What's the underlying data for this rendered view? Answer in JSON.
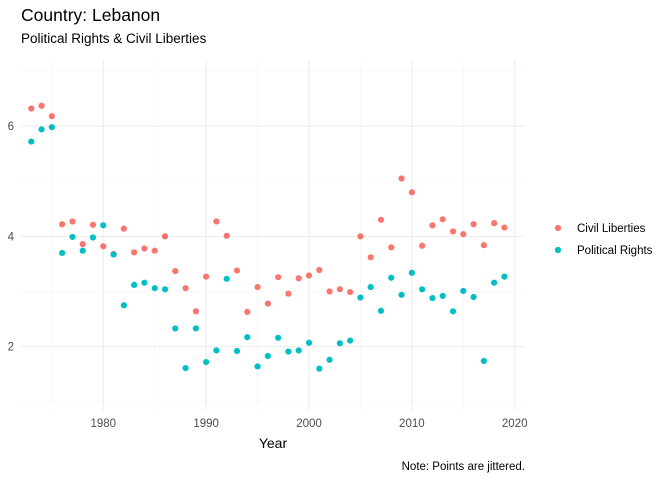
{
  "title": "Country: Lebanon",
  "subtitle": "Political Rights & Civil Liberties",
  "caption": "Note: Points are jittered.",
  "chart_data": {
    "type": "scatter",
    "xlabel": "Year",
    "ylabel": "",
    "xlim": [
      1972,
      2021
    ],
    "ylim": [
      0.85,
      7.2
    ],
    "x_ticks": [
      1980,
      1990,
      2000,
      2010,
      2020
    ],
    "y_ticks": [
      2,
      4,
      6
    ],
    "grid": true,
    "legend_position": "right",
    "series": [
      {
        "name": "Civil Liberties",
        "color": "#F8766D",
        "points": [
          [
            1973,
            6.32
          ],
          [
            1974,
            6.37
          ],
          [
            1975,
            6.18
          ],
          [
            1976,
            4.22
          ],
          [
            1977,
            4.27
          ],
          [
            1978,
            3.86
          ],
          [
            1979,
            4.21
          ],
          [
            1980,
            3.82
          ],
          [
            1981,
            3.68
          ],
          [
            1982,
            4.14
          ],
          [
            1983,
            3.71
          ],
          [
            1984,
            3.78
          ],
          [
            1985,
            3.74
          ],
          [
            1986,
            4.0
          ],
          [
            1987,
            3.37
          ],
          [
            1988,
            3.06
          ],
          [
            1989,
            2.64
          ],
          [
            1990,
            3.27
          ],
          [
            1991,
            4.27
          ],
          [
            1992,
            4.01
          ],
          [
            1993,
            3.38
          ],
          [
            1994,
            2.63
          ],
          [
            1995,
            3.08
          ],
          [
            1996,
            2.78
          ],
          [
            1997,
            3.26
          ],
          [
            1998,
            2.96
          ],
          [
            1999,
            3.24
          ],
          [
            2000,
            3.29
          ],
          [
            2001,
            3.39
          ],
          [
            2002,
            3.0
          ],
          [
            2003,
            3.04
          ],
          [
            2004,
            2.99
          ],
          [
            2005,
            4.0
          ],
          [
            2006,
            3.62
          ],
          [
            2007,
            4.3
          ],
          [
            2008,
            3.8
          ],
          [
            2009,
            5.05
          ],
          [
            2010,
            4.8
          ],
          [
            2011,
            3.83
          ],
          [
            2012,
            4.2
          ],
          [
            2013,
            4.31
          ],
          [
            2014,
            4.09
          ],
          [
            2015,
            4.04
          ],
          [
            2016,
            4.22
          ],
          [
            2017,
            3.84
          ],
          [
            2018,
            4.24
          ],
          [
            2019,
            4.16
          ]
        ]
      },
      {
        "name": "Political Rights",
        "color": "#00BFC4",
        "points": [
          [
            1973,
            5.72
          ],
          [
            1974,
            5.94
          ],
          [
            1975,
            5.98
          ],
          [
            1976,
            3.7
          ],
          [
            1977,
            3.99
          ],
          [
            1978,
            3.74
          ],
          [
            1979,
            3.98
          ],
          [
            1980,
            4.2
          ],
          [
            1981,
            3.67
          ],
          [
            1982,
            2.75
          ],
          [
            1983,
            3.12
          ],
          [
            1984,
            3.16
          ],
          [
            1985,
            3.06
          ],
          [
            1986,
            3.04
          ],
          [
            1987,
            2.33
          ],
          [
            1988,
            1.61
          ],
          [
            1989,
            2.33
          ],
          [
            1990,
            1.72
          ],
          [
            1991,
            1.93
          ],
          [
            1992,
            3.23
          ],
          [
            1993,
            1.92
          ],
          [
            1994,
            2.17
          ],
          [
            1995,
            1.64
          ],
          [
            1996,
            1.83
          ],
          [
            1997,
            2.16
          ],
          [
            1998,
            1.91
          ],
          [
            1999,
            1.93
          ],
          [
            2000,
            2.07
          ],
          [
            2001,
            1.6
          ],
          [
            2002,
            1.76
          ],
          [
            2003,
            2.06
          ],
          [
            2004,
            2.11
          ],
          [
            2005,
            2.89
          ],
          [
            2006,
            3.08
          ],
          [
            2007,
            2.65
          ],
          [
            2008,
            3.25
          ],
          [
            2009,
            2.94
          ],
          [
            2010,
            3.34
          ],
          [
            2011,
            3.04
          ],
          [
            2012,
            2.88
          ],
          [
            2013,
            2.92
          ],
          [
            2014,
            2.64
          ],
          [
            2015,
            3.01
          ],
          [
            2016,
            2.9
          ],
          [
            2017,
            1.74
          ],
          [
            2018,
            3.16
          ],
          [
            2019,
            3.27
          ]
        ]
      }
    ]
  }
}
